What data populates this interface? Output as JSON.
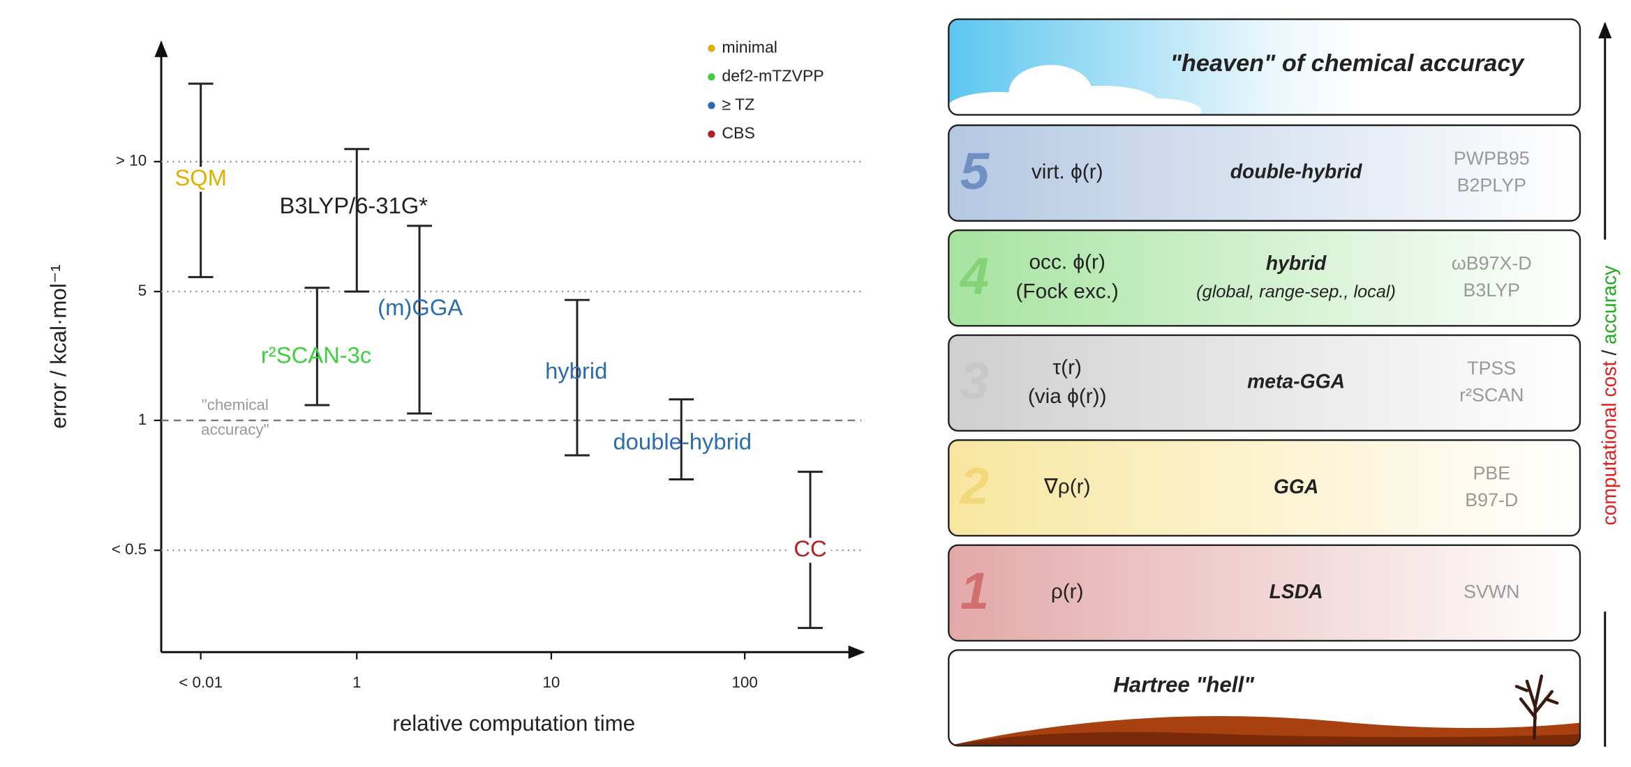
{
  "chart_data": {
    "type": "errorbar",
    "xlabel": "relative computation time",
    "ylabel": "error / kcal·mol⁻¹",
    "log_x": true,
    "log_y": true,
    "xlim": [
      0.0031,
      410
    ],
    "xticks": [
      {
        "value": 0.01,
        "label": "< 0.01"
      },
      1,
      10,
      100
    ],
    "ylim": [
      0.29,
      19
    ],
    "yticks": [
      {
        "value": 10,
        "label": "> 10"
      },
      5,
      1,
      {
        "value": 0.5,
        "label": "< 0.5"
      }
    ],
    "grid": true,
    "bar_color": "#222222",
    "chemical_accuracy": {
      "value": 1,
      "label": [
        "\"chemical",
        "accuracy\""
      ]
    },
    "legend_position": "upper right",
    "legend": [
      {
        "name": "minimal",
        "color": "#e0b000"
      },
      {
        "name": "def2-mTZVPP",
        "color": "#3ecf3e"
      },
      {
        "name": "≥ TZ",
        "color": "#2b6cb0"
      },
      {
        "name": "CBS",
        "color": "#b22222"
      }
    ],
    "series": [
      {
        "name": "SQM",
        "color": "#e0b000",
        "x": 0.01,
        "high": 15.2,
        "low": 5.4
      },
      {
        "name": "B3LYP/6-31G*",
        "color": "#222222",
        "x": 1,
        "high": 10.7,
        "low": 5
      },
      {
        "name": "(m)GGA",
        "color": "#2b6cb0",
        "x": 2.1,
        "high": 7.1,
        "low": 1.09
      },
      {
        "name": "r²SCAN-3c",
        "color": "#3ecf3e",
        "x": 0.31,
        "high": 5.1,
        "low": 1.21
      },
      {
        "name": "hybrid",
        "color": "#2b6cb0",
        "x": 13.6,
        "high": 4.5,
        "low": 0.83
      },
      {
        "name": "double-hybrid",
        "color": "#2b6cb0",
        "x": 47,
        "high": 1.3,
        "low": 0.73
      },
      {
        "name": "CC",
        "color": "#b22222",
        "x": 218,
        "high": 0.76,
        "low": 0.33
      }
    ]
  },
  "ladder": {
    "top": "\"heaven\" of chemical accuracy",
    "rungs": [
      {
        "number": "5",
        "ingredient": [
          "virt. ϕ(r)"
        ],
        "name": "double-hybrid",
        "examples": [
          "PWPB95",
          "B2PLYP"
        ]
      },
      {
        "number": "4",
        "ingredient": [
          "occ. ϕ(r)",
          "(Fock exc.)"
        ],
        "name": "hybrid",
        "subtitle": "(global, range-sep., local)",
        "examples": [
          "ωB97X-D",
          "B3LYP"
        ]
      },
      {
        "number": "3",
        "ingredient": [
          "τ(r)",
          "(via ϕ(r))"
        ],
        "name": "meta-GGA",
        "examples": [
          "TPSS",
          "r²SCAN"
        ]
      },
      {
        "number": "2",
        "ingredient": [
          "∇ρ(r)"
        ],
        "name": "GGA",
        "examples": [
          "PBE",
          "B97-D"
        ]
      },
      {
        "number": "1",
        "ingredient": [
          "ρ(r)"
        ],
        "name": "LSDA",
        "examples": [
          "SVWN"
        ]
      }
    ],
    "bottom": "Hartree \"hell\"",
    "side_label": [
      {
        "text": "computational cost",
        "color": "#e02020"
      },
      {
        "text": " / ",
        "color": "#222222"
      },
      {
        "text": "accuracy",
        "color": "#22aa22"
      }
    ]
  }
}
